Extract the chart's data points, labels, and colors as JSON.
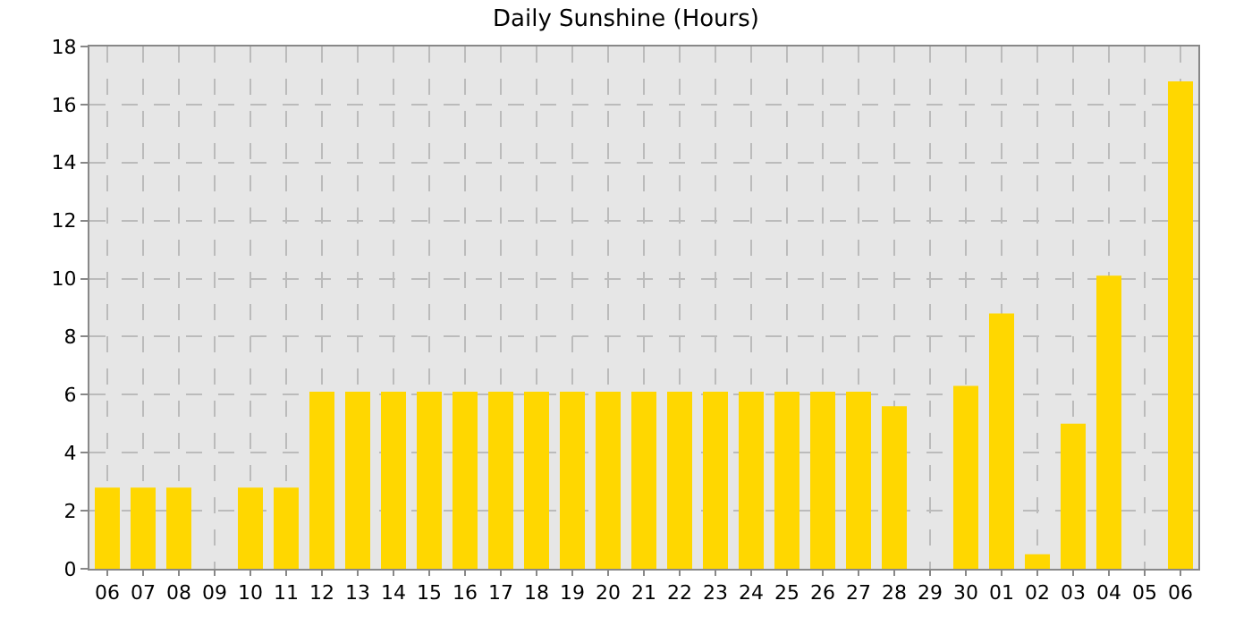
{
  "chart_data": {
    "type": "bar",
    "title": "Daily Sunshine (Hours)",
    "categories": [
      "06",
      "07",
      "08",
      "09",
      "10",
      "11",
      "12",
      "13",
      "14",
      "15",
      "16",
      "17",
      "18",
      "19",
      "20",
      "21",
      "22",
      "23",
      "24",
      "25",
      "26",
      "27",
      "28",
      "29",
      "30",
      "01",
      "02",
      "03",
      "04",
      "05",
      "06"
    ],
    "values": [
      2.8,
      2.8,
      2.8,
      0,
      2.8,
      2.8,
      6.1,
      6.1,
      6.1,
      6.1,
      6.1,
      6.1,
      6.1,
      6.1,
      6.1,
      6.1,
      6.1,
      6.1,
      6.1,
      6.1,
      6.1,
      6.1,
      5.6,
      0,
      6.3,
      8.8,
      0.5,
      5.0,
      10.1,
      0,
      16.8
    ],
    "color": "#ffd700",
    "ylim": [
      0,
      18
    ],
    "yticks": [
      0,
      2,
      4,
      6,
      8,
      10,
      12,
      14,
      16,
      18
    ],
    "grid": true
  }
}
